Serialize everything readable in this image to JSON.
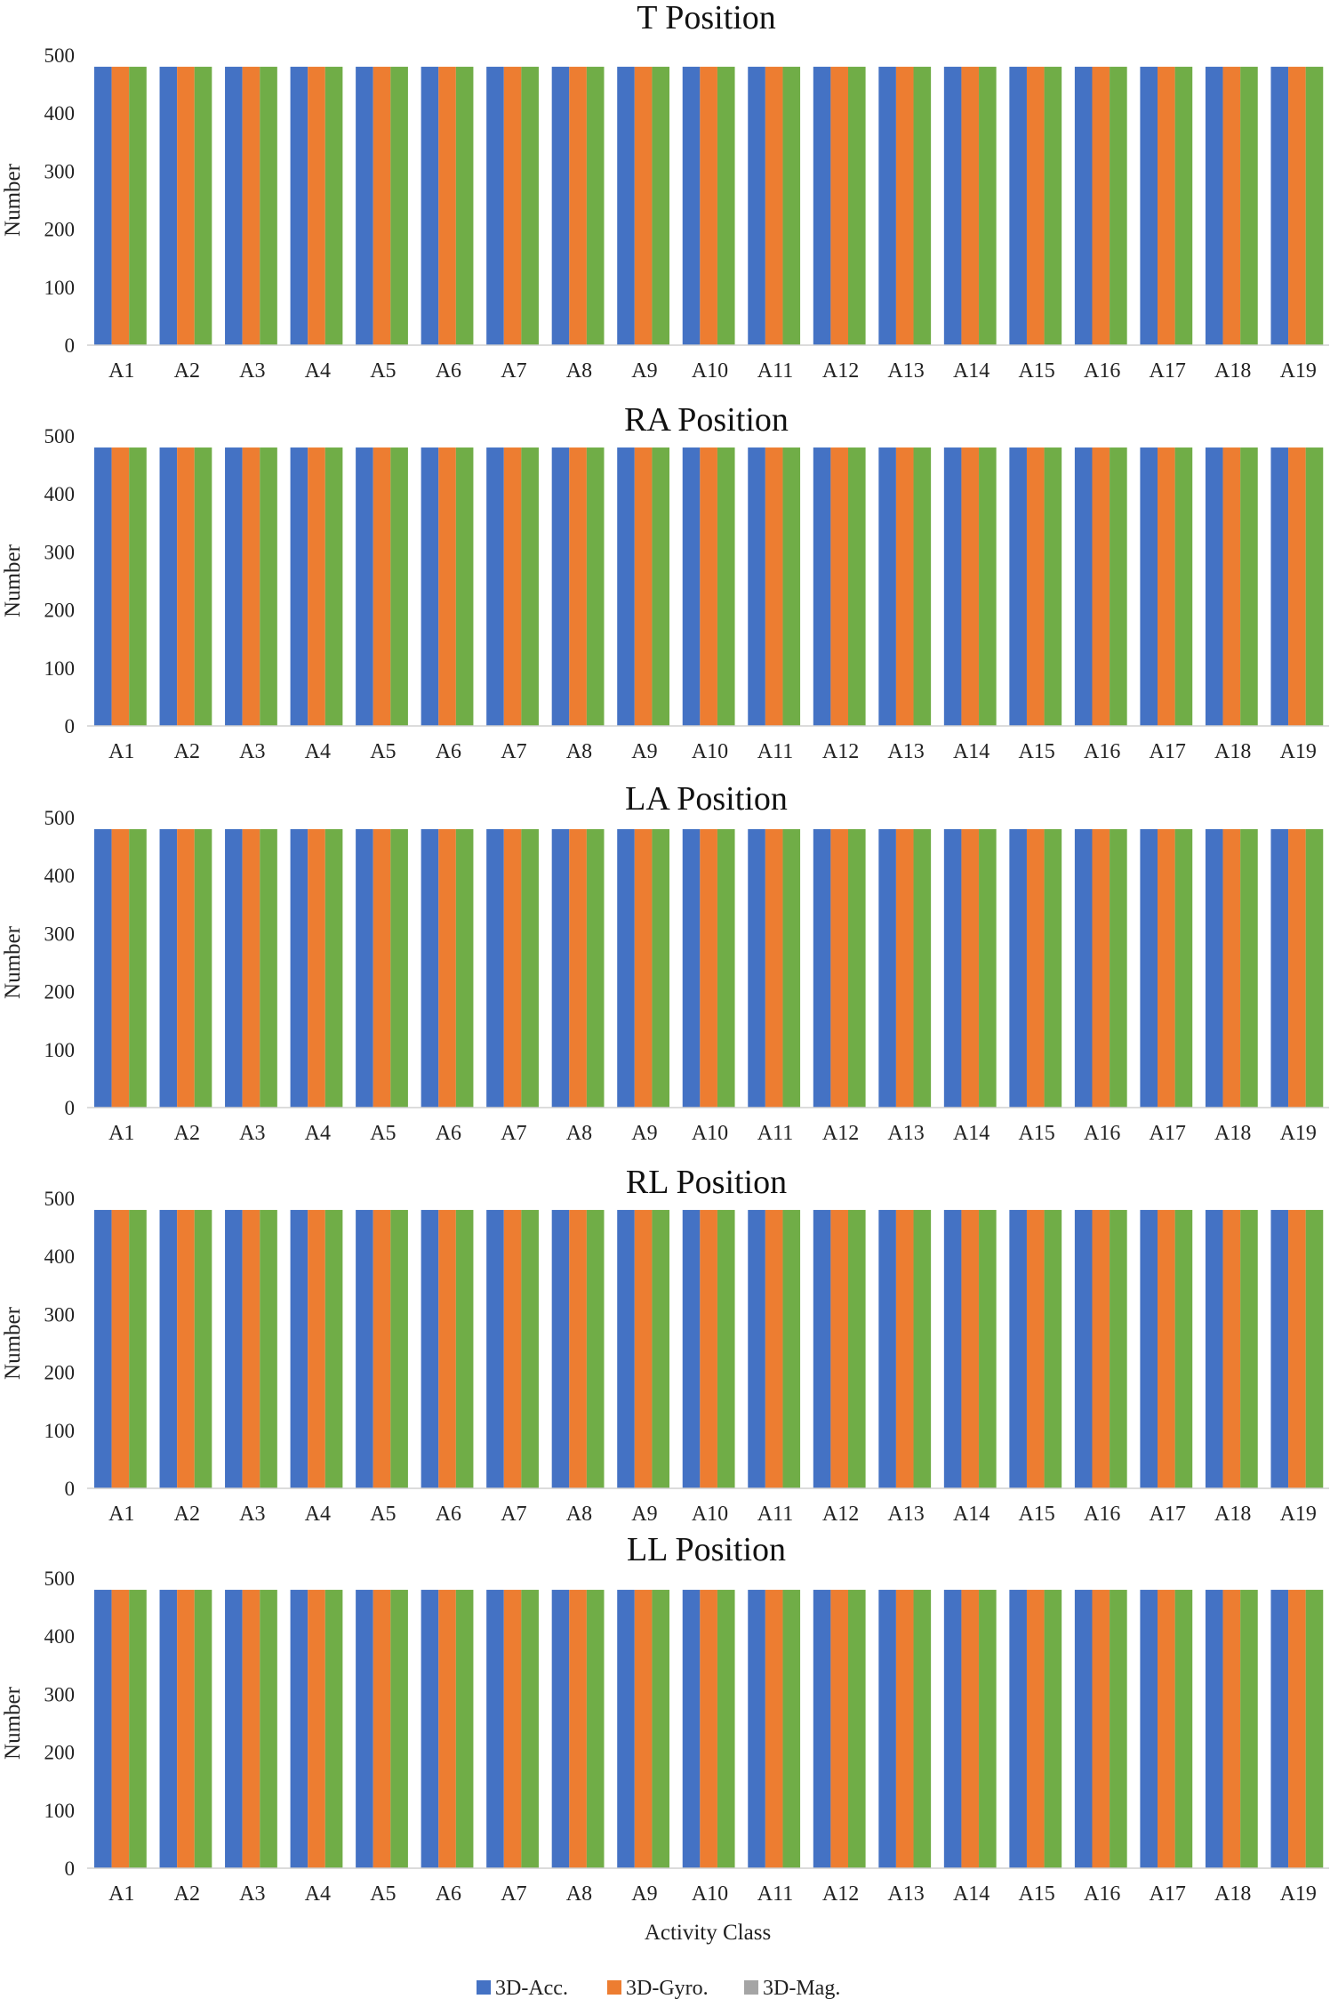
{
  "chart_data": {
    "type": "bar",
    "xlabel": "Activity Class",
    "ylabel": "Number",
    "ylim": [
      0,
      500
    ],
    "yticks": [
      0,
      100,
      200,
      300,
      400,
      500
    ],
    "categories": [
      "A1",
      "A2",
      "A3",
      "A4",
      "A5",
      "A6",
      "A7",
      "A8",
      "A9",
      "A10",
      "A11",
      "A12",
      "A13",
      "A14",
      "A15",
      "A16",
      "A17",
      "A18",
      "A19"
    ],
    "colors": {
      "3D-Acc.": "#4472c4",
      "3D-Gyro.": "#ed7d31",
      "3D-Mag.": "#a5a5a5",
      "third_bar": "#70ad47"
    },
    "legend": {
      "placement": "bottom-center",
      "entries": [
        {
          "name": "3D-Acc.",
          "color": "#4472c4"
        },
        {
          "name": "3D-Gyro.",
          "color": "#ed7d31"
        },
        {
          "name": "3D-Mag.",
          "color": "#a5a5a5"
        }
      ]
    },
    "panels": [
      {
        "title": "T Position",
        "series": [
          {
            "name": "3D-Acc.",
            "values": [
              480,
              480,
              480,
              480,
              480,
              480,
              480,
              480,
              480,
              480,
              480,
              480,
              480,
              480,
              480,
              480,
              480,
              480,
              480
            ]
          },
          {
            "name": "3D-Gyro.",
            "values": [
              480,
              480,
              480,
              480,
              480,
              480,
              480,
              480,
              480,
              480,
              480,
              480,
              480,
              480,
              480,
              480,
              480,
              480,
              480
            ]
          },
          {
            "name": "3D-Mag.",
            "values": [
              480,
              480,
              480,
              480,
              480,
              480,
              480,
              480,
              480,
              480,
              480,
              480,
              480,
              480,
              480,
              480,
              480,
              480,
              480
            ]
          }
        ]
      },
      {
        "title": "RA Position",
        "series": [
          {
            "name": "3D-Acc.",
            "values": [
              480,
              480,
              480,
              480,
              480,
              480,
              480,
              480,
              480,
              480,
              480,
              480,
              480,
              480,
              480,
              480,
              480,
              480,
              480
            ]
          },
          {
            "name": "3D-Gyro.",
            "values": [
              480,
              480,
              480,
              480,
              480,
              480,
              480,
              480,
              480,
              480,
              480,
              480,
              480,
              480,
              480,
              480,
              480,
              480,
              480
            ]
          },
          {
            "name": "3D-Mag.",
            "values": [
              480,
              480,
              480,
              480,
              480,
              480,
              480,
              480,
              480,
              480,
              480,
              480,
              480,
              480,
              480,
              480,
              480,
              480,
              480
            ]
          }
        ]
      },
      {
        "title": "LA Position",
        "series": [
          {
            "name": "3D-Acc.",
            "values": [
              480,
              480,
              480,
              480,
              480,
              480,
              480,
              480,
              480,
              480,
              480,
              480,
              480,
              480,
              480,
              480,
              480,
              480,
              480
            ]
          },
          {
            "name": "3D-Gyro.",
            "values": [
              480,
              480,
              480,
              480,
              480,
              480,
              480,
              480,
              480,
              480,
              480,
              480,
              480,
              480,
              480,
              480,
              480,
              480,
              480
            ]
          },
          {
            "name": "3D-Mag.",
            "values": [
              480,
              480,
              480,
              480,
              480,
              480,
              480,
              480,
              480,
              480,
              480,
              480,
              480,
              480,
              480,
              480,
              480,
              480,
              480
            ]
          }
        ]
      },
      {
        "title": "RL Position",
        "series": [
          {
            "name": "3D-Acc.",
            "values": [
              480,
              480,
              480,
              480,
              480,
              480,
              480,
              480,
              480,
              480,
              480,
              480,
              480,
              480,
              480,
              480,
              480,
              480,
              480
            ]
          },
          {
            "name": "3D-Gyro.",
            "values": [
              480,
              480,
              480,
              480,
              480,
              480,
              480,
              480,
              480,
              480,
              480,
              480,
              480,
              480,
              480,
              480,
              480,
              480,
              480
            ]
          },
          {
            "name": "3D-Mag.",
            "values": [
              480,
              480,
              480,
              480,
              480,
              480,
              480,
              480,
              480,
              480,
              480,
              480,
              480,
              480,
              480,
              480,
              480,
              480,
              480
            ]
          }
        ]
      },
      {
        "title": "LL Position",
        "series": [
          {
            "name": "3D-Acc.",
            "values": [
              480,
              480,
              480,
              480,
              480,
              480,
              480,
              480,
              480,
              480,
              480,
              480,
              480,
              480,
              480,
              480,
              480,
              480,
              480
            ]
          },
          {
            "name": "3D-Gyro.",
            "values": [
              480,
              480,
              480,
              480,
              480,
              480,
              480,
              480,
              480,
              480,
              480,
              480,
              480,
              480,
              480,
              480,
              480,
              480,
              480
            ]
          },
          {
            "name": "3D-Mag.",
            "values": [
              480,
              480,
              480,
              480,
              480,
              480,
              480,
              480,
              480,
              480,
              480,
              480,
              480,
              480,
              480,
              480,
              480,
              480,
              480
            ]
          }
        ]
      }
    ]
  }
}
